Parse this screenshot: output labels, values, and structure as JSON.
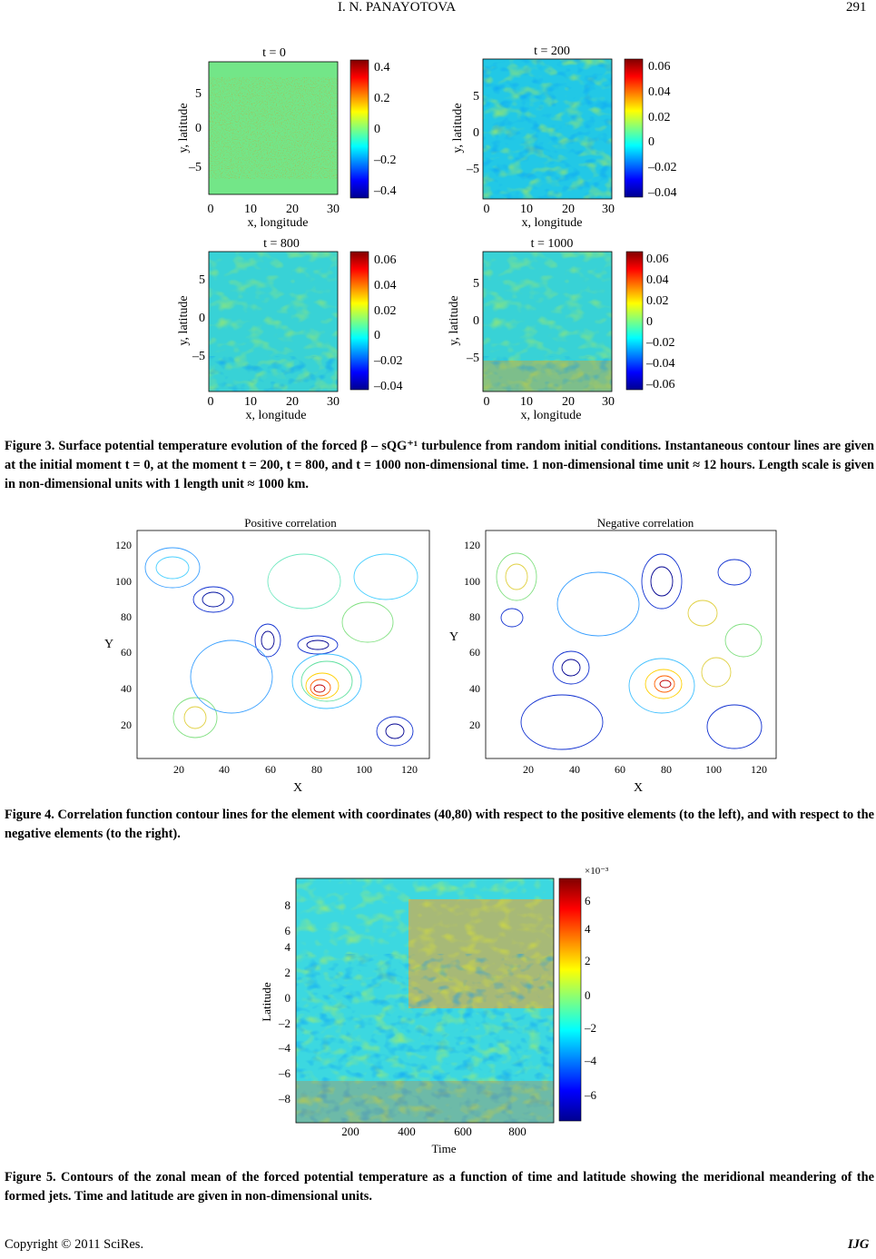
{
  "header": {
    "author": "I. N. PANAYOTOVA",
    "page_number": "291"
  },
  "figure3": {
    "panels": [
      {
        "title": "t = 0",
        "xlabel": "x, longitude",
        "ylabel": "y, latitude",
        "xticks": [
          "0",
          "10",
          "20",
          "30"
        ],
        "yticks": [
          "5",
          "0",
          "–5"
        ],
        "cbar_ticks": [
          "0.4",
          "0.2",
          "0",
          "–0.2",
          "–0.4"
        ]
      },
      {
        "title": "t = 200",
        "xlabel": "x, longitude",
        "ylabel": "y, latitude",
        "xticks": [
          "0",
          "10",
          "20",
          "30"
        ],
        "yticks": [
          "5",
          "0",
          "–5"
        ],
        "cbar_ticks": [
          "0.06",
          "0.04",
          "0.02",
          "0",
          "–0.02",
          "–0.04"
        ]
      },
      {
        "title": "t = 800",
        "xlabel": "x, longitude",
        "ylabel": "y, latitude",
        "xticks": [
          "0",
          "10",
          "20",
          "30"
        ],
        "yticks": [
          "5",
          "0",
          "–5"
        ],
        "cbar_ticks": [
          "0.06",
          "0.04",
          "0.02",
          "0",
          "–0.02",
          "–0.04"
        ]
      },
      {
        "title": "t = 1000",
        "xlabel": "x, longitude",
        "ylabel": "y, latitude",
        "xticks": [
          "0",
          "10",
          "20",
          "30"
        ],
        "yticks": [
          "5",
          "0",
          "–5"
        ],
        "cbar_ticks": [
          "0.06",
          "0.04",
          "0.02",
          "0",
          "–0.02",
          "–0.04",
          "–0.06"
        ]
      }
    ],
    "caption": "Figure 3. Surface potential temperature evolution of the forced β – sQG⁺¹ turbulence from random initial conditions. Instantaneous contour lines are given at the initial moment t = 0, at the moment t = 200, t = 800, and t = 1000 non-dimensional time. 1 non-dimensional time unit ≈ 12 hours. Length scale is given in non-dimensional units with 1 length unit ≈ 1000 km."
  },
  "figure4": {
    "panels": [
      {
        "title": "Positive correlation",
        "xlabel": "X",
        "ylabel": "Y",
        "xticks": [
          "20",
          "40",
          "60",
          "80",
          "100",
          "120"
        ],
        "yticks": [
          "120",
          "100",
          "80",
          "60",
          "40",
          "20"
        ]
      },
      {
        "title": "Negative correlation",
        "xlabel": "X",
        "ylabel": "Y",
        "xticks": [
          "20",
          "40",
          "60",
          "80",
          "100",
          "120"
        ],
        "yticks": [
          "120",
          "100",
          "80",
          "60",
          "40",
          "20"
        ]
      }
    ],
    "caption": "Figure 4. Correlation function contour lines for the element with coordinates (40,80) with respect to the positive elements (to the left), and with respect to the negative elements (to the right)."
  },
  "figure5": {
    "xlabel": "Time",
    "ylabel": "Latitude",
    "xticks": [
      "200",
      "400",
      "600",
      "800"
    ],
    "yticks": [
      "8",
      "6",
      "4",
      "2",
      "0",
      "–2",
      "–4",
      "–6",
      "–8"
    ],
    "cbar_exponent": "×10⁻³",
    "cbar_ticks": [
      "6",
      "4",
      "2",
      "0",
      "–2",
      "–4",
      "–6"
    ],
    "caption": "Figure 5. Contours of the zonal mean of the forced potential temperature as a function of time and latitude showing the meridional meandering of the formed jets. Time and latitude are given in non-dimensional units."
  },
  "footer": {
    "copyright": "Copyright © 2011 SciRes.",
    "journal": "IJG"
  },
  "colors": {
    "jet_low": "#00008f",
    "jet_mid": "#7fff7f",
    "jet_high": "#800000"
  }
}
